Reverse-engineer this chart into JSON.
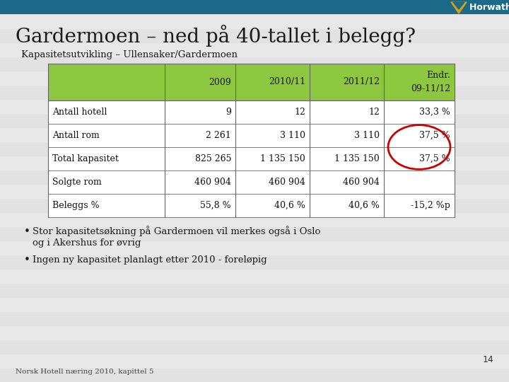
{
  "title": "Gardermoen – ned på 40-tallet i belegg?",
  "subtitle": "Kapasitetsutvikling – Ullensaker/Gardermoen",
  "bg_color": "#d9d9d9",
  "bg_color2": "#e8e8e8",
  "header_bg": "#8dc63f",
  "top_bar_color": "#1b6a8a",
  "table_headers": [
    "",
    "2009",
    "2010/11",
    "2011/12",
    "Endr.\n09-11/12"
  ],
  "table_rows": [
    [
      "Antall hotell",
      "9",
      "12",
      "12",
      "33,3 %"
    ],
    [
      "Antall rom",
      "2 261",
      "3 110",
      "3 110",
      "37,5 %"
    ],
    [
      "Total kapasitet",
      "825 265",
      "1 135 150",
      "1 135 150",
      "37,5 %"
    ],
    [
      "Solgte rom",
      "460 904",
      "460 904",
      "460 904",
      ""
    ],
    [
      "Beleggs %",
      "55,8 %",
      "40,6 %",
      "40,6 %",
      "-15,2 %p"
    ]
  ],
  "bullet1a": "Stor kapasitetsøkning på Gardermoen vil merkes også i Oslo",
  "bullet1b": "og i Akershus for øvrig",
  "bullet2": "Ingen ny kapasitet planlagt etter 2010 - foreløpig",
  "footer": "Norsk Hotell næring 2010, kapittel 5",
  "page_num": "14",
  "circle_rows": [
    1,
    2
  ],
  "circle_color": "#cc0000",
  "row_text_color": "#111111",
  "logo_gold": "#d4a017",
  "logo_text": "Horwath HTL"
}
